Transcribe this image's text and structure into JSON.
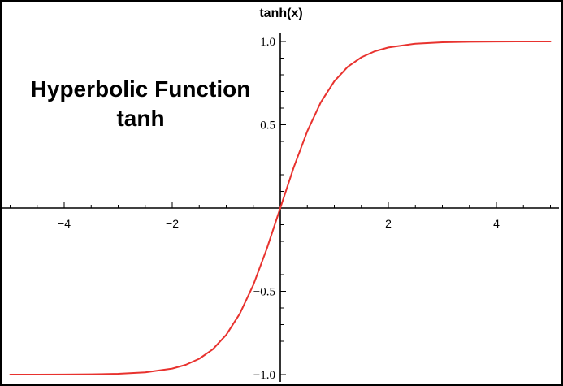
{
  "chart_data": {
    "type": "line",
    "title": "Hyperbolic Function",
    "subtitle": "tanh",
    "ylabel": "tanh(x)",
    "xlabel": "",
    "xlim": [
      -5,
      5
    ],
    "ylim": [
      -1.05,
      1.05
    ],
    "grid": false,
    "x_ticks": [
      -4,
      -2,
      2,
      4
    ],
    "x_tick_labels": [
      "−4",
      "−2",
      "2",
      "4"
    ],
    "y_ticks": [
      1.0,
      0.5,
      -0.5,
      -1.0
    ],
    "y_tick_labels": [
      "1.0",
      "0.5",
      "−0.5",
      "−1.0"
    ],
    "series": [
      {
        "color": "#e8322e",
        "x": [
          -5,
          -4.5,
          -4,
          -3.5,
          -3,
          -2.5,
          -2,
          -1.75,
          -1.5,
          -1.25,
          -1,
          -0.75,
          -0.5,
          -0.25,
          0,
          0.25,
          0.5,
          0.75,
          1,
          1.25,
          1.5,
          1.75,
          2,
          2.5,
          3,
          3.5,
          4,
          4.5,
          5
        ],
        "values": [
          -0.9999,
          -0.9998,
          -0.9993,
          -0.9982,
          -0.9951,
          -0.9866,
          -0.964,
          -0.9414,
          -0.9051,
          -0.8483,
          -0.7616,
          -0.6351,
          -0.4621,
          -0.2449,
          0.0,
          0.2449,
          0.4621,
          0.6351,
          0.7616,
          0.8483,
          0.9051,
          0.9414,
          0.964,
          0.9866,
          0.9951,
          0.9982,
          0.9993,
          0.9998,
          0.9999
        ]
      }
    ]
  }
}
